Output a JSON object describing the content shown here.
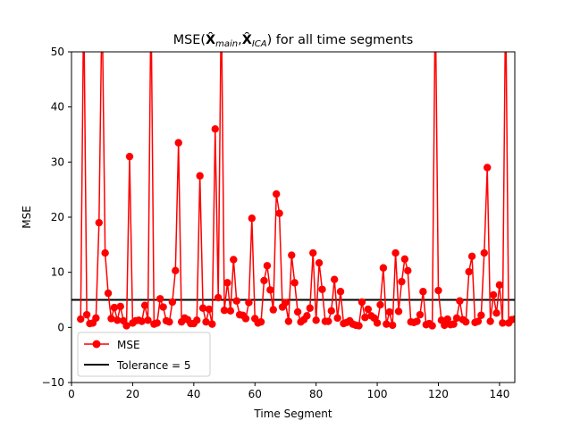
{
  "chart_data": {
    "type": "line",
    "title": "MSE(X̂main,X̂ICA) for all time segments",
    "title_parts": {
      "prefix": "MSE(",
      "symbol1": "X̂",
      "sub1": "main",
      "sep": ",",
      "symbol2": "X̂",
      "sub2": "ICA",
      "suffix": ") for all time segments"
    },
    "xlabel": "Time Segment",
    "ylabel": "MSE",
    "xlim": [
      0,
      145
    ],
    "ylim": [
      -10,
      50
    ],
    "xticks": [
      0,
      20,
      40,
      60,
      80,
      100,
      120,
      140
    ],
    "yticks": [
      -10,
      0,
      10,
      20,
      30,
      40,
      50
    ],
    "legend_position": "lower-left",
    "series": [
      {
        "name": "MSE",
        "color": "#ff0000",
        "marker": "circle",
        "x": [
          3,
          4,
          5,
          6,
          7,
          8,
          9,
          10,
          11,
          12,
          13,
          14,
          15,
          16,
          17,
          18,
          19,
          20,
          21,
          22,
          23,
          24,
          25,
          26,
          27,
          28,
          29,
          30,
          31,
          32,
          33,
          34,
          35,
          36,
          37,
          38,
          39,
          40,
          41,
          42,
          43,
          44,
          45,
          46,
          47,
          48,
          49,
          50,
          51,
          52,
          53,
          54,
          55,
          56,
          57,
          58,
          59,
          60,
          61,
          62,
          63,
          64,
          65,
          66,
          67,
          68,
          69,
          70,
          71,
          72,
          73,
          74,
          75,
          76,
          77,
          78,
          79,
          80,
          81,
          82,
          83,
          84,
          85,
          86,
          87,
          88,
          89,
          90,
          91,
          92,
          93,
          94,
          95,
          96,
          97,
          98,
          99,
          100,
          101,
          102,
          103,
          104,
          105,
          106,
          107,
          108,
          109,
          110,
          111,
          112,
          113,
          114,
          115,
          116,
          117,
          118,
          119,
          120,
          121,
          122,
          123,
          124,
          125,
          126,
          127,
          128,
          129,
          130,
          131,
          132,
          133,
          134,
          135,
          136,
          137,
          138,
          139,
          140,
          141,
          142,
          143,
          144,
          145
        ],
        "y": [
          1.5,
          60,
          2.3,
          0.7,
          0.8,
          1.7,
          19,
          60,
          13.5,
          6.2,
          1.6,
          3.6,
          1.3,
          3.8,
          1.2,
          0.3,
          31,
          0.8,
          1.2,
          1.3,
          1.1,
          4,
          1.3,
          60,
          0.6,
          0.8,
          5.2,
          3.7,
          1.2,
          1,
          4.6,
          10.3,
          33.5,
          1,
          1.7,
          1.4,
          0.7,
          0.7,
          1.3,
          27.5,
          3.5,
          1,
          3.3,
          0.6,
          36,
          5.4,
          60,
          3.1,
          8.1,
          3,
          12.3,
          4.8,
          2.3,
          2.2,
          1.6,
          4.5,
          19.8,
          1.6,
          0.8,
          1,
          8.5,
          11.2,
          6.8,
          3.2,
          24.2,
          20.7,
          3.7,
          4.5,
          1.1,
          13.1,
          8.1,
          2.8,
          1,
          1.4,
          2.1,
          3.5,
          13.5,
          1.3,
          11.7,
          6.9,
          1.1,
          1.1,
          3,
          8.7,
          1.7,
          6.5,
          0.7,
          0.9,
          1.2,
          0.6,
          0.4,
          0.3,
          4.6,
          1.8,
          3.3,
          2.1,
          1.7,
          0.8,
          4.1,
          10.8,
          0.6,
          2.8,
          0.4,
          13.5,
          2.9,
          8.3,
          12.4,
          10.3,
          1,
          0.9,
          1.1,
          2.3,
          6.5,
          0.5,
          0.7,
          0.3,
          60,
          6.7,
          1.3,
          0.4,
          1.5,
          0.5,
          0.6,
          1.7,
          4.8,
          1.4,
          1,
          10.1,
          12.9,
          0.9,
          1.1,
          2.2,
          13.5,
          29,
          1.1,
          5.9,
          2.6,
          7.7,
          0.8,
          60,
          0.8,
          1.4,
          1.5
        ]
      },
      {
        "name": "Tolerance = 5",
        "color": "#000000",
        "type": "hline",
        "y": 5
      }
    ]
  }
}
